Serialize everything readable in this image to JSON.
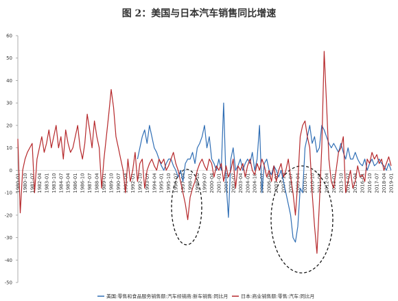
{
  "chart_data": {
    "type": "line",
    "title": "图 2：美国与日本汽车销售同比增速",
    "categories": [
      "1980-01",
      null,
      null,
      "1980-10",
      null,
      null,
      "1981-07",
      null,
      null,
      "1982-04",
      null,
      null,
      "1983-01",
      null,
      null,
      "1983-10",
      null,
      null,
      "1984-07",
      null,
      null,
      "1985-04",
      null,
      null,
      "1986-01",
      null,
      null,
      "1986-10",
      null,
      null,
      "1987-07",
      null,
      null,
      "1988-04",
      null,
      null,
      "1989-01",
      null,
      null,
      "1989-10",
      null,
      null,
      "1990-07",
      null,
      null,
      "1991-04",
      null,
      null,
      "1992-01",
      null,
      null,
      "1992-10",
      null,
      null,
      "1993-07",
      null,
      null,
      "1994-04",
      null,
      null,
      "1995-01",
      null,
      null,
      "1995-10",
      null,
      null,
      "1996-07",
      null,
      null,
      "1997-04",
      null,
      null,
      "1998-01",
      null,
      null,
      "1998-10",
      null,
      null,
      "1999-07",
      null,
      null,
      "2000-04",
      null,
      null,
      "2001-01",
      null,
      null,
      "2001-10",
      null,
      null,
      "2002-07",
      null,
      null,
      "2003-04",
      null,
      null,
      "2004-01",
      null,
      null,
      "2004-10",
      null,
      null,
      "2005-07",
      null,
      null,
      "2006-04",
      null,
      null,
      "2007-01",
      null,
      null,
      "2007-10",
      null,
      null,
      "2008-07",
      null,
      null,
      "2009-04",
      null,
      null,
      "2010-01",
      null,
      null,
      "2010-10",
      null,
      null,
      "2011-07",
      null,
      null,
      "2012-04",
      null,
      null,
      "2013-01",
      null,
      null,
      "2013-10",
      null,
      null,
      "2014-07",
      null,
      null,
      "2015-04",
      null,
      null,
      "2016-01",
      null,
      null,
      "2016-10",
      null,
      null,
      "2017-07",
      null,
      null,
      "2018-04",
      null,
      null,
      "2019-01"
    ],
    "series": [
      {
        "name": "美国:零售和食品服务销售额:汽车经销商:新车销售:同比月",
        "color": "#2e6db4",
        "values": [
          null,
          null,
          null,
          null,
          null,
          null,
          null,
          null,
          null,
          null,
          null,
          null,
          null,
          null,
          null,
          null,
          null,
          null,
          null,
          null,
          null,
          null,
          null,
          null,
          null,
          null,
          null,
          null,
          null,
          null,
          null,
          null,
          null,
          null,
          null,
          null,
          null,
          null,
          null,
          null,
          null,
          null,
          null,
          null,
          null,
          null,
          null,
          null,
          null,
          null,
          5,
          10,
          15,
          18,
          12,
          20,
          15,
          10,
          8,
          5,
          2,
          0,
          3,
          5,
          5,
          2,
          0,
          -3,
          0,
          -5,
          3,
          5,
          5,
          8,
          3,
          10,
          12,
          15,
          20,
          10,
          15,
          5,
          3,
          0,
          5,
          0,
          30,
          -5,
          -21,
          5,
          10,
          0,
          2,
          5,
          0,
          3,
          5,
          3,
          8,
          0,
          5,
          20,
          -10,
          3,
          5,
          0,
          -2,
          2,
          0,
          -3,
          0,
          -5,
          -10,
          -15,
          -20,
          -30,
          -32,
          -25,
          -8,
          -10,
          10,
          15,
          20,
          12,
          15,
          8,
          10,
          20,
          18,
          15,
          12,
          10,
          12,
          10,
          8,
          12,
          8,
          5,
          10,
          5,
          5,
          8,
          5,
          3,
          2,
          5,
          0,
          3,
          5,
          2,
          3,
          5,
          3,
          2,
          0,
          3,
          0
        ]
      },
      {
        "name": "日本:商业销售额:零售:汽车:同比月",
        "color": "#b5272a",
        "values": [
          14,
          -19,
          0,
          5,
          8,
          10,
          12,
          -10,
          5,
          10,
          15,
          8,
          12,
          18,
          10,
          15,
          20,
          10,
          15,
          5,
          18,
          12,
          8,
          10,
          15,
          20,
          10,
          5,
          12,
          25,
          18,
          10,
          22,
          15,
          10,
          -8,
          5,
          15,
          25,
          36,
          28,
          15,
          10,
          5,
          0,
          -10,
          5,
          -5,
          0,
          8,
          -5,
          3,
          5,
          -8,
          0,
          3,
          5,
          2,
          0,
          5,
          3,
          5,
          0,
          2,
          5,
          8,
          3,
          0,
          -5,
          -10,
          -15,
          -22,
          -12,
          -8,
          -5,
          0,
          3,
          5,
          2,
          0,
          5,
          3,
          -3,
          2,
          0,
          3,
          -5,
          2,
          -3,
          0,
          5,
          -8,
          2,
          0,
          3,
          -3,
          2,
          5,
          0,
          -2,
          3,
          0,
          5,
          2,
          -3,
          0,
          -5,
          2,
          -5,
          0,
          3,
          -3,
          0,
          5,
          -3,
          -10,
          -20,
          -5,
          15,
          20,
          22,
          15,
          10,
          -10,
          -25,
          -37,
          -15,
          10,
          53,
          30,
          5,
          -5,
          -8,
          0,
          8,
          10,
          15,
          -10,
          -5,
          0,
          -8,
          -5,
          2,
          -3,
          -2,
          -5,
          5,
          3,
          8,
          5,
          7,
          3,
          5,
          0,
          3,
          6,
          2
        ]
      }
    ],
    "ylim": [
      -50,
      60
    ],
    "yticks": [
      -50,
      -40,
      -30,
      -20,
      -10,
      0,
      10,
      20,
      30,
      40,
      50,
      60
    ]
  }
}
